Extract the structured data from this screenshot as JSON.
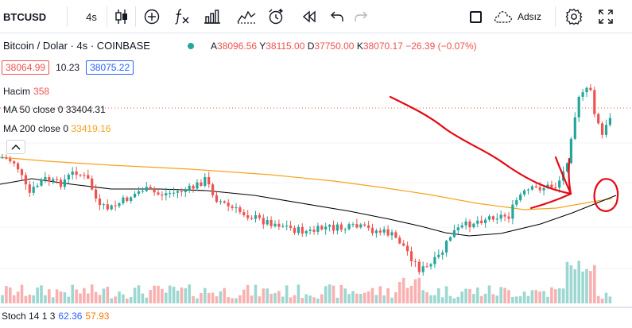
{
  "toolbar": {
    "symbol": "BTCUSD",
    "interval": "4s",
    "layout_name": "Adsız"
  },
  "legend": {
    "title": "Bitcoin / Dolar · 4s · COINBASE",
    "ohlc": {
      "open_label": "A",
      "open": "38096.56",
      "high_label": "Y",
      "high": "38115.00",
      "low_label": "D",
      "low": "37750.00",
      "close_label": "K",
      "close": "38070.17",
      "change": "−26.39 (−0.07%)"
    },
    "bid": "38064.99",
    "spread": "10.23",
    "ask": "38075.22"
  },
  "indicators": {
    "volume": {
      "label": "Hacim",
      "value": "358"
    },
    "ma50": {
      "label": "MA 50 close 0",
      "value": "33404.31"
    },
    "ma200": {
      "label": "MA 200 close 0",
      "value": "33419.16"
    },
    "stoch": {
      "label": "Stoch 14 1 3",
      "k": "62.36",
      "d": "57.93"
    }
  },
  "colors": {
    "up": "#26a69a",
    "down": "#ef5350",
    "ma50": "#000000",
    "ma200": "#f7a21b",
    "annotation": "#e50914",
    "stoch_k": "#2962ff",
    "stoch_d": "#f57c00"
  },
  "icons": [
    "bar-style-icon",
    "add-indicator-icon",
    "fx-icon",
    "templates-icon",
    "compare-icon",
    "alert-icon",
    "replay-icon",
    "undo-icon",
    "redo-icon",
    "layout-icon",
    "cloud-icon",
    "settings-icon",
    "fullscreen-icon",
    "collapse-chevron-icon"
  ]
}
